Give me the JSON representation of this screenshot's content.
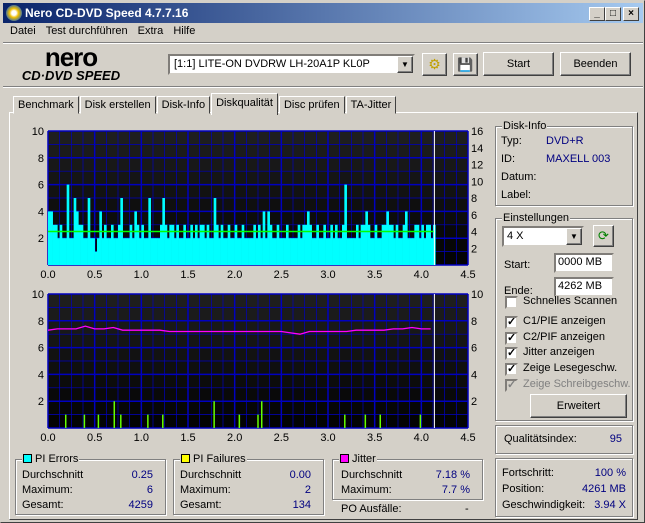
{
  "window": {
    "title": "Nero CD-DVD Speed 4.7.7.16"
  },
  "menu": [
    "Datei",
    "Test durchführen",
    "Extra",
    "Hilfe"
  ],
  "logo": {
    "top": "nero",
    "bottom": "CD·DVD SPEED"
  },
  "toolbar": {
    "drive": "[1:1]   LITE-ON DVDRW LH-20A1P KL0P",
    "start": "Start",
    "quit": "Beenden"
  },
  "tabs": [
    "Benchmark",
    "Disk erstellen",
    "Disk-Info",
    "Diskqualität",
    "Disc prüfen",
    "TA-Jitter"
  ],
  "active_tab": "Diskqualität",
  "disk_info": {
    "title": "Disk-Info",
    "typ_label": "Typ:",
    "typ": "DVD+R",
    "id_label": "ID:",
    "id": "MAXELL 003",
    "datum_label": "Datum:",
    "label_label": "Label:"
  },
  "settings": {
    "title": "Einstellungen",
    "speed": "4 X",
    "start_label": "Start:",
    "start": "0000 MB",
    "end_label": "Ende:",
    "end": "4262 MB",
    "checks": [
      {
        "label": "Schnelles Scannen",
        "checked": false,
        "disabled": false
      },
      {
        "label": "C1/PIE anzeigen",
        "checked": true,
        "disabled": false
      },
      {
        "label": "C2/PIF anzeigen",
        "checked": true,
        "disabled": false
      },
      {
        "label": "Jitter anzeigen",
        "checked": true,
        "disabled": false
      },
      {
        "label": "Zeige Lesegeschw.",
        "checked": true,
        "disabled": false
      },
      {
        "label": "Zeige Schreibgeschw.",
        "checked": true,
        "disabled": true
      }
    ],
    "advanced": "Erweitert"
  },
  "quality": {
    "label": "Qualitätsindex:",
    "value": "95"
  },
  "progress": {
    "progress_label": "Fortschritt:",
    "progress": "100 %",
    "position_label": "Position:",
    "position": "4261 MB",
    "speed_label": "Geschwindigkeit:",
    "speed": "3.94 X"
  },
  "pi_errors": {
    "title": "PI Errors",
    "color": "#00ffff",
    "avg_label": "Durchschnitt",
    "avg": "0.25",
    "max_label": "Maximum:",
    "max": "6",
    "total_label": "Gesamt:",
    "total": "4259"
  },
  "pi_failures": {
    "title": "PI Failures",
    "color": "#ffff00",
    "avg_label": "Durchschnitt",
    "avg": "0.00",
    "max_label": "Maximum:",
    "max": "2",
    "total_label": "Gesamt:",
    "total": "134"
  },
  "jitter": {
    "title": "Jitter",
    "color": "#ff00ff",
    "avg_label": "Durchschnitt",
    "avg": "7.18 %",
    "max_label": "Maximum:",
    "max": "7.7 %",
    "po_label": "PO Ausfälle:",
    "po": "-"
  },
  "chart_data": [
    {
      "type": "bar",
      "name": "PI Errors",
      "xlim": [
        0,
        4.5
      ],
      "ylim": [
        0,
        10
      ],
      "y2lim": [
        0,
        16
      ],
      "xticks": [
        "0.0",
        "0.5",
        "1.0",
        "1.5",
        "2.0",
        "2.5",
        "3.0",
        "3.5",
        "4.0",
        "4.5"
      ],
      "yticks": [
        "2",
        "4",
        "6",
        "8",
        "10"
      ],
      "y2ticks": [
        "2",
        "4",
        "6",
        "8",
        "10",
        "12",
        "14",
        "16"
      ],
      "x_step": 0.025,
      "bar_color": "#00ffff",
      "values": [
        4,
        4,
        3,
        3,
        2,
        3,
        2,
        2,
        6,
        2,
        2,
        5,
        4,
        3,
        3,
        2,
        2,
        5,
        2,
        2,
        1,
        2,
        4,
        2,
        3,
        2,
        2,
        3,
        2,
        2,
        3,
        5,
        2,
        2,
        2,
        3,
        2,
        4,
        3,
        2,
        3,
        2,
        2,
        5,
        2,
        2,
        2,
        2,
        3,
        5,
        3,
        2,
        3,
        3,
        2,
        3,
        2,
        2,
        3,
        2,
        2,
        3,
        2,
        3,
        2,
        3,
        3,
        2,
        3,
        2,
        2,
        5,
        3,
        2,
        3,
        2,
        2,
        3,
        2,
        2,
        3,
        2,
        2,
        3,
        2,
        2,
        2,
        2,
        3,
        2,
        3,
        2,
        4,
        2,
        4,
        3,
        2,
        2,
        3,
        2,
        2,
        2,
        3,
        2,
        2,
        2,
        2,
        3,
        2,
        3,
        3,
        4,
        3,
        2,
        2,
        3,
        2,
        2,
        3,
        2,
        2,
        3,
        2,
        3,
        2,
        2,
        3,
        6,
        2,
        2,
        2,
        2,
        3,
        2,
        3,
        3,
        4,
        3,
        2,
        2,
        3,
        2,
        2,
        3,
        3,
        4,
        3,
        3,
        2,
        3,
        2,
        2,
        3,
        4,
        2,
        2,
        2,
        3,
        3,
        2,
        3,
        2,
        3,
        3,
        2,
        3
      ],
      "read_speed": {
        "color": "#00ff00",
        "value_right_axis": 4,
        "x_range": [
          0,
          4.13
        ]
      },
      "end_marker": 4.14
    },
    {
      "type": "bar+line",
      "name": "PI Failures / Jitter",
      "xlim": [
        0,
        4.5
      ],
      "ylim": [
        0,
        10
      ],
      "y2lim": [
        0,
        10
      ],
      "xticks": [
        "0.0",
        "0.5",
        "1.0",
        "1.5",
        "2.0",
        "2.5",
        "3.0",
        "3.5",
        "4.0",
        "4.5"
      ],
      "yticks": [
        "2",
        "4",
        "6",
        "8",
        "10"
      ],
      "y2ticks": [
        "2",
        "4",
        "6",
        "8",
        "10"
      ],
      "pif": {
        "color": "#66ff00",
        "points": [
          [
            0.19,
            1
          ],
          [
            0.39,
            1
          ],
          [
            0.54,
            1
          ],
          [
            0.71,
            2
          ],
          [
            0.78,
            1
          ],
          [
            1.07,
            1
          ],
          [
            1.23,
            1
          ],
          [
            1.78,
            2
          ],
          [
            2.05,
            1
          ],
          [
            2.25,
            1
          ],
          [
            2.29,
            2
          ],
          [
            3.18,
            1
          ],
          [
            3.4,
            1
          ],
          [
            3.56,
            1
          ],
          [
            3.99,
            1
          ]
        ]
      },
      "jitter": {
        "color": "#ff00ff",
        "x_step": 0.1,
        "values": [
          7.3,
          7.4,
          7.4,
          7.4,
          7.6,
          7.4,
          7.4,
          7.5,
          7.3,
          7.3,
          7.3,
          7.3,
          7.3,
          7.2,
          7.2,
          7.2,
          7.2,
          7.2,
          7.2,
          7.2,
          7.2,
          7.2,
          7.2,
          7.2,
          7.2,
          7.2,
          7.1,
          7.0,
          7.2,
          7.2,
          7.2,
          7.2,
          7.2,
          7.3,
          7.3,
          7.3,
          7.3,
          7.4,
          7.4,
          7.5,
          7.4,
          7.4
        ]
      },
      "end_marker": 4.14
    }
  ]
}
